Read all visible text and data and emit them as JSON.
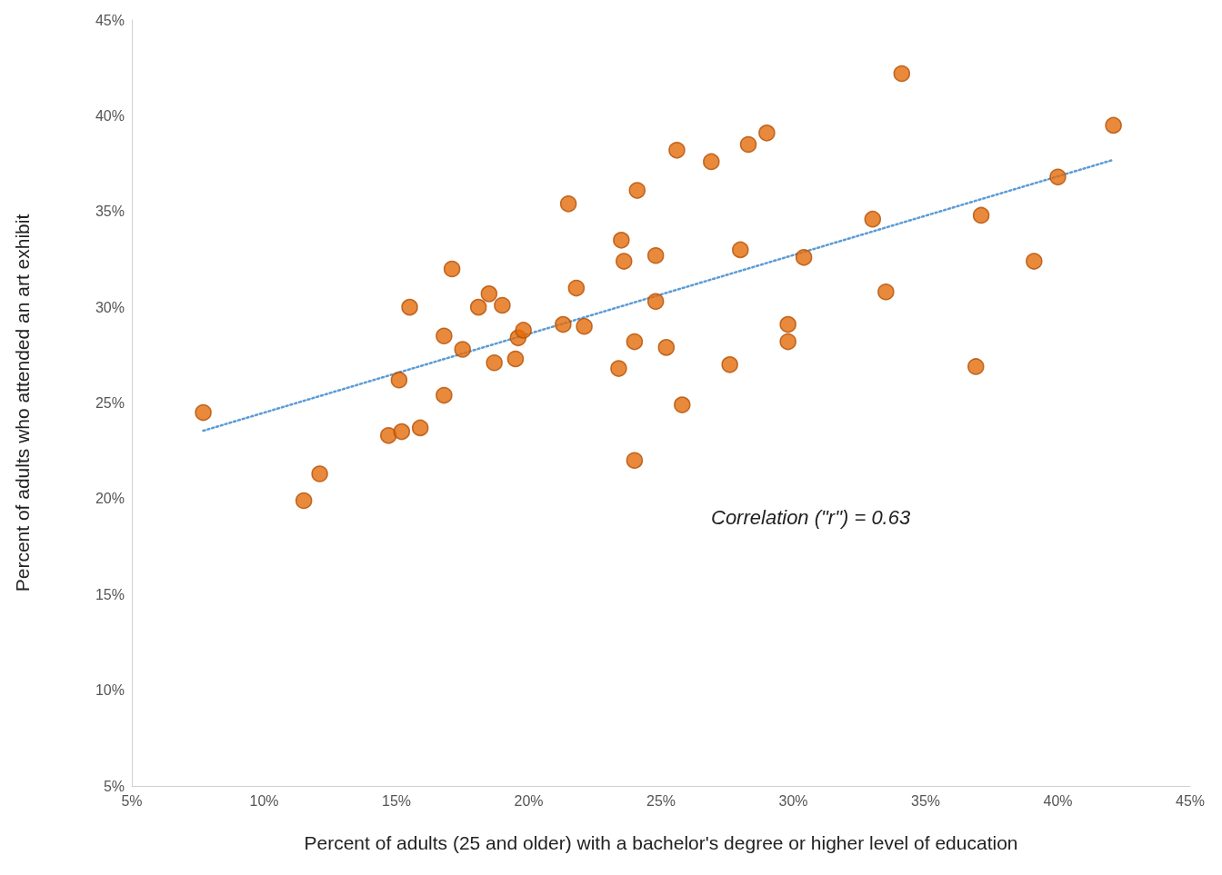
{
  "chart_data": {
    "type": "scatter",
    "xlabel": "Percent of adults (25 and older) with a bachelor's degree or higher level of education",
    "ylabel": "Percent of adults who attended an art exhibit",
    "xlim": [
      5,
      45
    ],
    "ylim": [
      5,
      45
    ],
    "xticks": [
      {
        "value": 5,
        "label": "5%"
      },
      {
        "value": 10,
        "label": "10%"
      },
      {
        "value": 15,
        "label": "15%"
      },
      {
        "value": 20,
        "label": "20%"
      },
      {
        "value": 25,
        "label": "25%"
      },
      {
        "value": 30,
        "label": "30%"
      },
      {
        "value": 35,
        "label": "35%"
      },
      {
        "value": 40,
        "label": "40%"
      },
      {
        "value": 45,
        "label": "45%"
      }
    ],
    "yticks": [
      {
        "value": 5,
        "label": "5%"
      },
      {
        "value": 10,
        "label": "10%"
      },
      {
        "value": 15,
        "label": "15%"
      },
      {
        "value": 20,
        "label": "20%"
      },
      {
        "value": 25,
        "label": "25%"
      },
      {
        "value": 30,
        "label": "30%"
      },
      {
        "value": 35,
        "label": "35%"
      },
      {
        "value": 40,
        "label": "40%"
      },
      {
        "value": 45,
        "label": "45%"
      }
    ],
    "grid": false,
    "marker": "circle",
    "annotations": [
      "Correlation (\"r\") = 0.63"
    ],
    "series": [
      {
        "color": "#e46c0a",
        "x": [
          7.7,
          11.5,
          12.1,
          14.7,
          15.2,
          15.9,
          15.1,
          15.5,
          16.8,
          16.8,
          17.1,
          17.5,
          18.1,
          18.5,
          18.7,
          19.0,
          19.5,
          19.6,
          19.8,
          21.3,
          21.5,
          21.8,
          22.1,
          23.4,
          23.5,
          23.6,
          24.0,
          24.0,
          24.1,
          24.8,
          24.8,
          25.2,
          25.6,
          25.8,
          26.9,
          27.6,
          28.0,
          28.3,
          29.0,
          29.8,
          29.8,
          30.4,
          33.0,
          33.5,
          34.1,
          36.9,
          37.1,
          39.1,
          40.0,
          42.1
        ],
        "values": [
          24.5,
          19.9,
          21.3,
          23.3,
          23.5,
          23.7,
          26.2,
          30.0,
          28.5,
          25.4,
          32.0,
          27.8,
          30.0,
          30.7,
          27.1,
          30.1,
          27.3,
          28.4,
          28.8,
          29.1,
          35.4,
          31.0,
          29.0,
          26.8,
          33.5,
          32.4,
          22.0,
          28.2,
          36.1,
          30.3,
          32.7,
          27.9,
          38.2,
          24.9,
          37.6,
          27.0,
          33.0,
          38.5,
          39.1,
          29.1,
          28.2,
          32.6,
          34.6,
          30.8,
          42.2,
          26.9,
          34.8,
          32.4,
          36.8,
          39.5
        ]
      },
      {
        "type": "line",
        "color": "#5b9bd5",
        "line_style": "dotted",
        "marker": "none",
        "x": [
          7.7,
          42.1
        ],
        "values": [
          23.55,
          37.7
        ]
      }
    ]
  }
}
